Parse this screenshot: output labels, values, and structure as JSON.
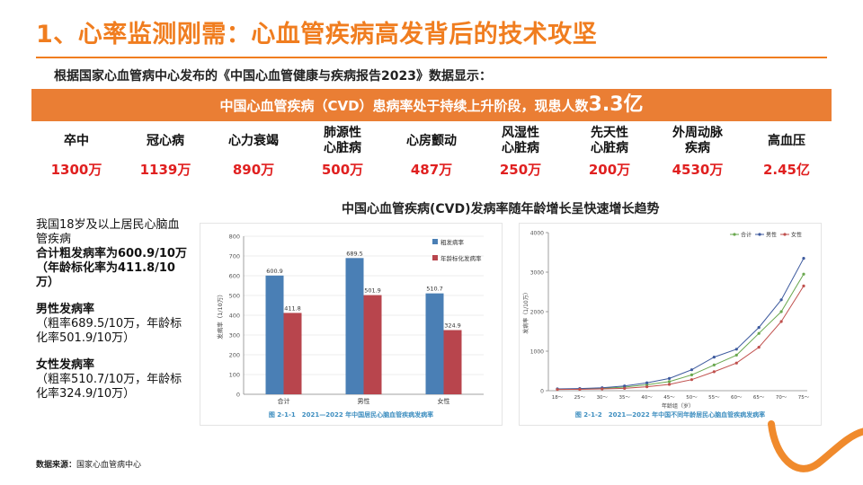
{
  "slide": {
    "title": "1、心率监测刚需：心血管疾病高发背后的技术攻坚",
    "subtitle": "根据国家心血管病中心发布的《中国心血管健康与疾病报告2023》数据显示：",
    "banner_prefix": "中国心血管疾病（CVD）患病率处于持续上升阶段，现患人数",
    "banner_highlight": "3.3亿",
    "colors": {
      "accent": "#f07d1f",
      "banner": "#ea7e34",
      "value_red": "#e02020",
      "bar_blue": "#4a7fb5",
      "bar_red": "#b8454d"
    }
  },
  "stats": [
    {
      "label": "卒中",
      "value": "1300万"
    },
    {
      "label": "冠心病",
      "value": "1139万"
    },
    {
      "label": "心力衰竭",
      "value": "890万"
    },
    {
      "label": "肺源性\n心脏病",
      "value": "500万"
    },
    {
      "label": "心房颤动",
      "value": "487万"
    },
    {
      "label": "风湿性\n心脏病",
      "value": "250万"
    },
    {
      "label": "先天性\n心脏病",
      "value": "200万"
    },
    {
      "label": "外周动脉\n疾病",
      "value": "4530万"
    },
    {
      "label": "高血压",
      "value": "2.45亿"
    }
  ],
  "chart_heading": "中国心血管疾病(CVD)发病率随年龄增长呈快速增长趋势",
  "left_panel": {
    "intro": "我国18岁及以上居民心脑血管疾病",
    "total": "合计粗发病率为600.9/10万（年龄标化率为411.8/10万）",
    "male_title": "男性发病率",
    "male_detail": "（粗率689.5/10万，年龄标化率501.9/10万）",
    "female_title": "女性发病率",
    "female_detail": "（粗率510.7/10万，年龄标化率324.9/10万）"
  },
  "source": {
    "label": "数据来源：",
    "value": "国家心血管病中心"
  },
  "chart_data": [
    {
      "type": "bar",
      "caption": "图 2-1-1　2021—2022 年中国居民心脑血管疾病发病率",
      "ylabel": "发病率（1/10万）",
      "ylim": [
        0,
        800
      ],
      "yticks": [
        0,
        100,
        200,
        300,
        400,
        500,
        600,
        700,
        800
      ],
      "categories": [
        "合计",
        "男性",
        "女性"
      ],
      "series": [
        {
          "name": "粗发病率",
          "values": [
            600.9,
            689.5,
            510.7
          ],
          "color": "#4a7fb5"
        },
        {
          "name": "年龄标化发病率",
          "values": [
            411.8,
            501.9,
            324.9
          ],
          "color": "#b8454d"
        }
      ],
      "legend": "top-right",
      "grid": true
    },
    {
      "type": "line",
      "caption": "图 2-1-2　2021—2022 年中国不同年龄居民心脑血管疾病发病率",
      "xlabel": "年龄组（岁）",
      "ylabel": "发病率（1/10万）",
      "ylim": [
        0,
        4000
      ],
      "yticks": [
        0,
        1000,
        2000,
        3000,
        4000
      ],
      "categories": [
        "18～",
        "25～",
        "30～",
        "35～",
        "40～",
        "45～",
        "50～",
        "55～",
        "60～",
        "65～",
        "70～",
        "75～"
      ],
      "series": [
        {
          "name": "合计",
          "values": [
            40,
            45,
            60,
            90,
            150,
            230,
            400,
            650,
            900,
            1450,
            2000,
            2950
          ],
          "color": "#6aa84f"
        },
        {
          "name": "男性",
          "values": [
            45,
            55,
            75,
            120,
            200,
            310,
            530,
            850,
            1050,
            1600,
            2300,
            3350
          ],
          "color": "#3d5a9e"
        },
        {
          "name": "女性",
          "values": [
            30,
            35,
            45,
            60,
            100,
            160,
            280,
            480,
            700,
            1100,
            1750,
            2650
          ],
          "color": "#c0504d"
        }
      ],
      "legend": "top-left",
      "grid": false
    }
  ]
}
